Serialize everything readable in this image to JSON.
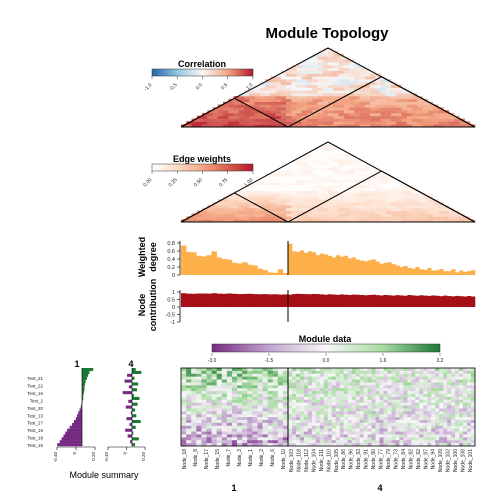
{
  "title": "Module Topology",
  "panels": {
    "correlation": {
      "legend_title": "Correlation",
      "legend_ticks": [
        "-1.0",
        "-0.5",
        "0.0",
        "0.5",
        "1.0"
      ],
      "colors": [
        "#2166ac",
        "#92c5de",
        "#f7f7f7",
        "#f4a582",
        "#b2182b"
      ]
    },
    "edge_weights": {
      "legend_title": "Edge weights",
      "legend_ticks": [
        "0.00",
        "0.25",
        "0.50",
        "0.75",
        "1.00"
      ],
      "colors": [
        "#ffffff",
        "#fddbc7",
        "#f4a582",
        "#d6604d",
        "#b2182b"
      ]
    },
    "weighted_degree": {
      "ylabel_line1": "Weighted",
      "ylabel_line2": "degree",
      "yticks": [
        "0.8",
        "0.6",
        "0.4",
        "0.2",
        "0"
      ],
      "color": "#fdb04a"
    },
    "node_contribution": {
      "ylabel_line1": "Node",
      "ylabel_line2": "contribution",
      "yticks": [
        "1",
        "0.5",
        "0",
        "-0.5",
        "-1"
      ],
      "color": "#a50f15"
    },
    "module_data": {
      "title": "Module data",
      "ticks": [
        "-3.0",
        "-1.5",
        "0.0",
        "1.6",
        "3.2"
      ],
      "colors": [
        "#762a83",
        "#c2a5cf",
        "#f7f7f7",
        "#a6dba0",
        "#1b7837"
      ]
    },
    "module_summary": {
      "xlabel": "Module summary",
      "samples": [
        "Test_21",
        "Test_22",
        "Test_16",
        "Test_2",
        "Test_20",
        "Test_13",
        "Test_27",
        "Test_19",
        "Test_18",
        "Test_15"
      ],
      "xticks_1": [
        "-0.40",
        "0",
        "0.20"
      ],
      "xticks_4": [
        "-0.40",
        "0",
        "0.20"
      ]
    }
  },
  "chart_data": {
    "type": "heatmap",
    "title": "Module Topology",
    "modules": [
      {
        "name": "1",
        "nodes": [
          "Node_18",
          "Node_8",
          "Node_17",
          "Node_15",
          "Node_7",
          "Node_3",
          "Node_1",
          "Node_2",
          "Node_6",
          "Node_10"
        ]
      },
      {
        "name": "4",
        "nodes": [
          "Node_103",
          "Node_118",
          "Node_112",
          "Node_104",
          "Node_111",
          "Node_110",
          "Node_105",
          "Node_86",
          "Node_96",
          "Node_93",
          "Node_91",
          "Node_90",
          "Node_77",
          "Node_79",
          "Node_73",
          "Node_84",
          "Node_82",
          "Node_92",
          "Node_97",
          "Node_94",
          "Node_109",
          "Node_102",
          "Node_100",
          "Node_108",
          "Node_101"
        ]
      }
    ],
    "weighted_degree": {
      "ylim": [
        0,
        1
      ],
      "values_module_1": [
        0.92,
        0.72,
        0.71,
        0.6,
        0.58,
        0.62,
        0.74,
        0.55,
        0.5,
        0.48,
        0.38,
        0.36,
        0.4,
        0.32,
        0.3,
        0.2,
        0.15,
        0.08,
        0.07,
        0.18,
        0.06
      ],
      "values_module_4": [
        0.98,
        0.74,
        0.72,
        0.77,
        0.69,
        0.74,
        0.71,
        0.62,
        0.67,
        0.64,
        0.6,
        0.55,
        0.62,
        0.57,
        0.6,
        0.52,
        0.55,
        0.48,
        0.45,
        0.43,
        0.46,
        0.49,
        0.42,
        0.35,
        0.38,
        0.4,
        0.34,
        0.3,
        0.25,
        0.28,
        0.22,
        0.2,
        0.25,
        0.18,
        0.16,
        0.22,
        0.14,
        0.15,
        0.19,
        0.12,
        0.12,
        0.18,
        0.08,
        0.14,
        0.1,
        0.12,
        0.15
      ]
    },
    "node_contribution": {
      "ylim": [
        -1,
        1
      ],
      "values_module_1": [
        0.92,
        0.89,
        0.88,
        0.9,
        0.9,
        0.89,
        0.92,
        0.89,
        0.88,
        0.9,
        0.88,
        0.86,
        0.87,
        0.88,
        0.86,
        0.85,
        0.86,
        0.84,
        0.85,
        0.83,
        0.84
      ],
      "values_module_4": [
        0.82,
        0.86,
        0.88,
        0.87,
        0.86,
        0.85,
        0.87,
        0.86,
        0.84,
        0.82,
        0.85,
        0.83,
        0.81,
        0.84,
        0.82,
        0.8,
        0.83,
        0.82,
        0.8,
        0.78,
        0.8,
        0.82,
        0.79,
        0.77,
        0.8,
        0.78,
        0.76,
        0.79,
        0.77,
        0.75,
        0.8,
        0.77,
        0.75,
        0.78,
        0.76,
        0.74,
        0.77,
        0.75,
        0.72,
        0.76,
        0.73,
        0.71,
        0.74,
        0.72,
        0.7,
        0.73,
        0.7
      ]
    },
    "module_summary": {
      "module_1": [
        0.18,
        0.12,
        0.1,
        0.08,
        0.06,
        0.05,
        0.04,
        0.04,
        0.03,
        0.02,
        0.02,
        0.01,
        -0.01,
        -0.02,
        -0.04,
        -0.06,
        -0.08,
        -0.1,
        -0.13,
        -0.16,
        -0.2,
        -0.24,
        -0.27,
        -0.3,
        -0.33,
        -0.36,
        -0.4
      ],
      "module_4": [
        0.06,
        0.15,
        -0.08,
        0.04,
        -0.12,
        0.1,
        -0.05,
        0.08,
        -0.15,
        0.03,
        0.12,
        -0.06,
        0.09,
        -0.1,
        0.05,
        -0.02,
        0.07,
        -0.09,
        0.14,
        -0.04,
        0.06,
        -0.11,
        0.02,
        -0.07,
        0.11,
        -0.03,
        0.05
      ]
    }
  }
}
